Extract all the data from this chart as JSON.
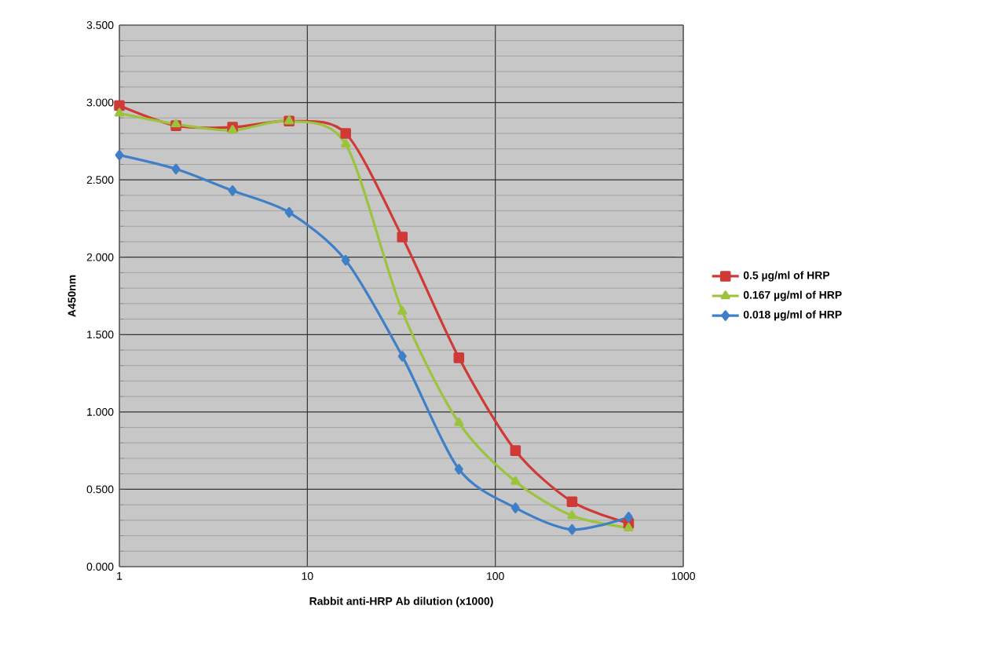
{
  "chart_data": {
    "type": "line",
    "xlabel": "Rabbit anti-HRP Ab dilution (x1000)",
    "ylabel": "A450nm",
    "log": "x",
    "x": [
      1,
      2,
      4,
      8,
      16,
      32,
      64,
      128,
      256,
      512
    ],
    "xlim": [
      1,
      1000
    ],
    "xticks": [
      1,
      10,
      100,
      1000
    ],
    "ylim": [
      0,
      3.5
    ],
    "yticks": [
      {
        "value": 0,
        "label": "0.000"
      },
      {
        "value": 0.5,
        "label": "0.500"
      },
      {
        "value": 1,
        "label": "1.000"
      },
      {
        "value": 1.5,
        "label": "1.500"
      },
      {
        "value": 2,
        "label": "2.000"
      },
      {
        "value": 2.5,
        "label": "2.500"
      },
      {
        "value": 3,
        "label": "3.000"
      },
      {
        "value": 3.5,
        "label": "3.500"
      }
    ],
    "grid": true,
    "legend": "right",
    "series": [
      {
        "name": "0.5 µg/ml of HRP",
        "color": "#d03a36",
        "marker": "square",
        "values": [
          2.98,
          2.85,
          2.84,
          2.88,
          2.8,
          2.13,
          1.35,
          0.75,
          0.42,
          0.28
        ]
      },
      {
        "name": "0.167 µg/ml of HRP",
        "color": "#9bc33c",
        "marker": "triangle",
        "values": [
          2.93,
          2.86,
          2.82,
          2.88,
          2.73,
          1.65,
          0.93,
          0.55,
          0.33,
          0.25
        ]
      },
      {
        "name": "0.018 µg/ml of HRP",
        "color": "#3f7fc8",
        "marker": "diamond",
        "values": [
          2.66,
          2.57,
          2.43,
          2.29,
          1.98,
          1.36,
          0.63,
          0.38,
          0.24,
          0.32
        ]
      }
    ]
  }
}
